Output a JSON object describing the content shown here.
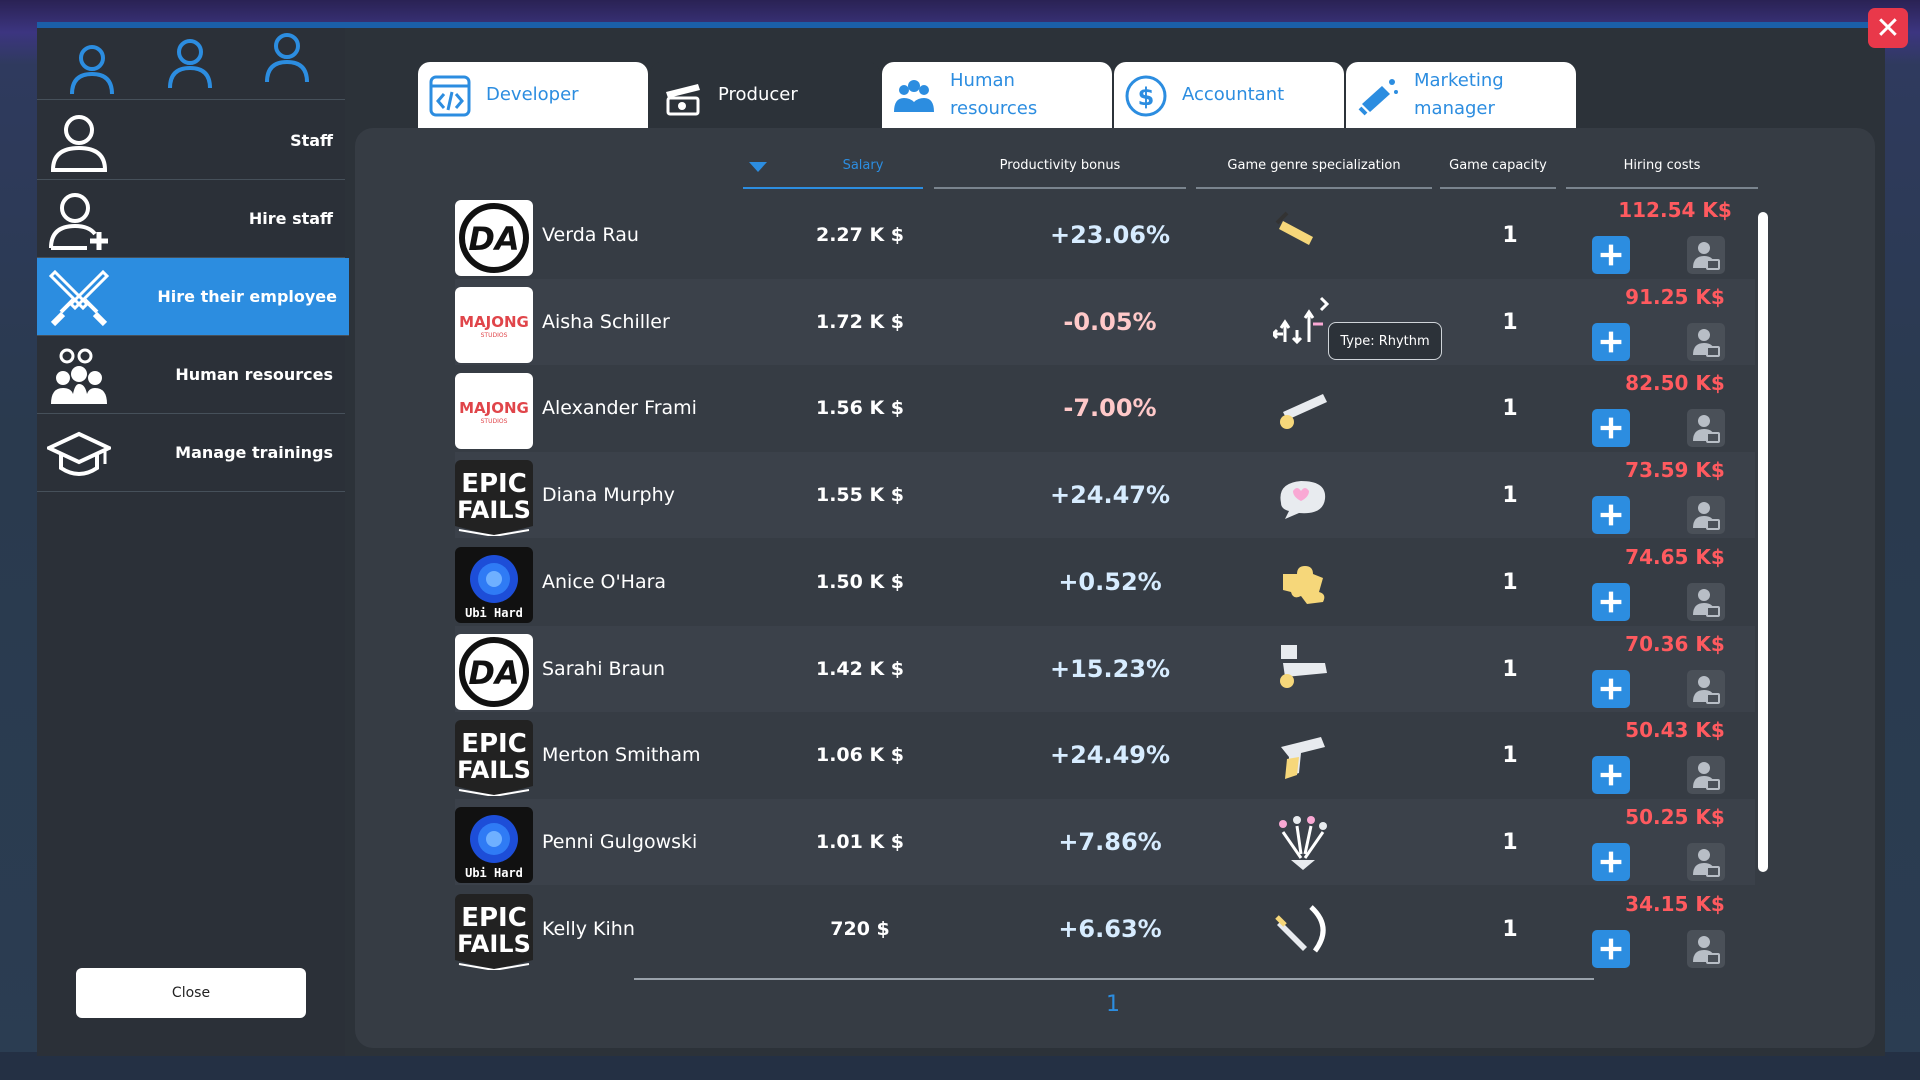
{
  "sidebar": {
    "items": [
      {
        "label": "Staff",
        "icon": "person-icon"
      },
      {
        "label": "Hire staff",
        "icon": "person-add-icon"
      },
      {
        "label": "Hire their employee",
        "icon": "crossed-swords-icon"
      },
      {
        "label": "Human resources",
        "icon": "group-gears-icon"
      },
      {
        "label": "Manage trainings",
        "icon": "graduation-cap-icon"
      }
    ],
    "close_label": "Close"
  },
  "tabs": [
    {
      "label": "Developer",
      "icon": "code-icon"
    },
    {
      "label": "Producer",
      "icon": "clapper-icon"
    },
    {
      "label": "Human resources",
      "icon": "group-icon"
    },
    {
      "label": "Accountant",
      "icon": "dollar-icon"
    },
    {
      "label": "Marketing manager",
      "icon": "megaphone-icon"
    }
  ],
  "columns": {
    "salary": "Salary",
    "productivity": "Productivity bonus",
    "genre": "Game genre specialization",
    "capacity": "Game capacity",
    "hiring": "Hiring costs"
  },
  "tooltip": "Type: Rhythm",
  "employees": [
    {
      "logo": "DA",
      "name": "Verda Rau",
      "salary": "2.27 K $",
      "bonus": "+23.06%",
      "genre_icon": "hammer-icon",
      "capacity": "1",
      "cost": "112.54 K$"
    },
    {
      "logo": "MAJONG",
      "logo_sub": "STUDIOS",
      "name": "Aisha Schiller",
      "salary": "1.72 K $",
      "bonus": "-0.05%",
      "genre_icon": "rhythm-arrows-icon",
      "capacity": "1",
      "cost": "91.25 K$"
    },
    {
      "logo": "MAJONG",
      "logo_sub": "STUDIOS",
      "name": "Alexander Frami",
      "salary": "1.56 K $",
      "bonus": "-7.00%",
      "genre_icon": "cannon-icon",
      "capacity": "1",
      "cost": "82.50 K$"
    },
    {
      "logo": "EPIC FAILS",
      "name": "Diana Murphy",
      "salary": "1.55 K $",
      "bonus": "+24.47%",
      "genre_icon": "chat-heart-icon",
      "capacity": "1",
      "cost": "73.59 K$"
    },
    {
      "logo": "Ubi Hard",
      "name": "Anice O'Hara",
      "salary": "1.50 K $",
      "bonus": "+0.52%",
      "genre_icon": "puzzle-icon",
      "capacity": "1",
      "cost": "74.65 K$"
    },
    {
      "logo": "DA",
      "name": "Sarahi Braun",
      "salary": "1.42 K $",
      "bonus": "+15.23%",
      "genre_icon": "tower-cannon-icon",
      "capacity": "1",
      "cost": "70.36 K$"
    },
    {
      "logo": "EPIC FAILS",
      "name": "Merton Smitham",
      "salary": "1.06 K $",
      "bonus": "+24.49%",
      "genre_icon": "revolver-icon",
      "capacity": "1",
      "cost": "50.43 K$"
    },
    {
      "logo": "Ubi Hard",
      "name": "Penni Gulgowski",
      "salary": "1.01 K $",
      "bonus": "+7.86%",
      "genre_icon": "fountain-icon",
      "capacity": "1",
      "cost": "50.25 K$"
    },
    {
      "logo": "EPIC FAILS",
      "name": "Kelly Kihn",
      "salary": "720 $",
      "bonus": "+6.63%",
      "genre_icon": "sword-slash-icon",
      "capacity": "1",
      "cost": "34.15 K$"
    }
  ],
  "pagination": {
    "current": "1"
  },
  "colors": {
    "accent": "#2c8de0",
    "cost": "#ff5a5f",
    "close": "#e9384a"
  }
}
